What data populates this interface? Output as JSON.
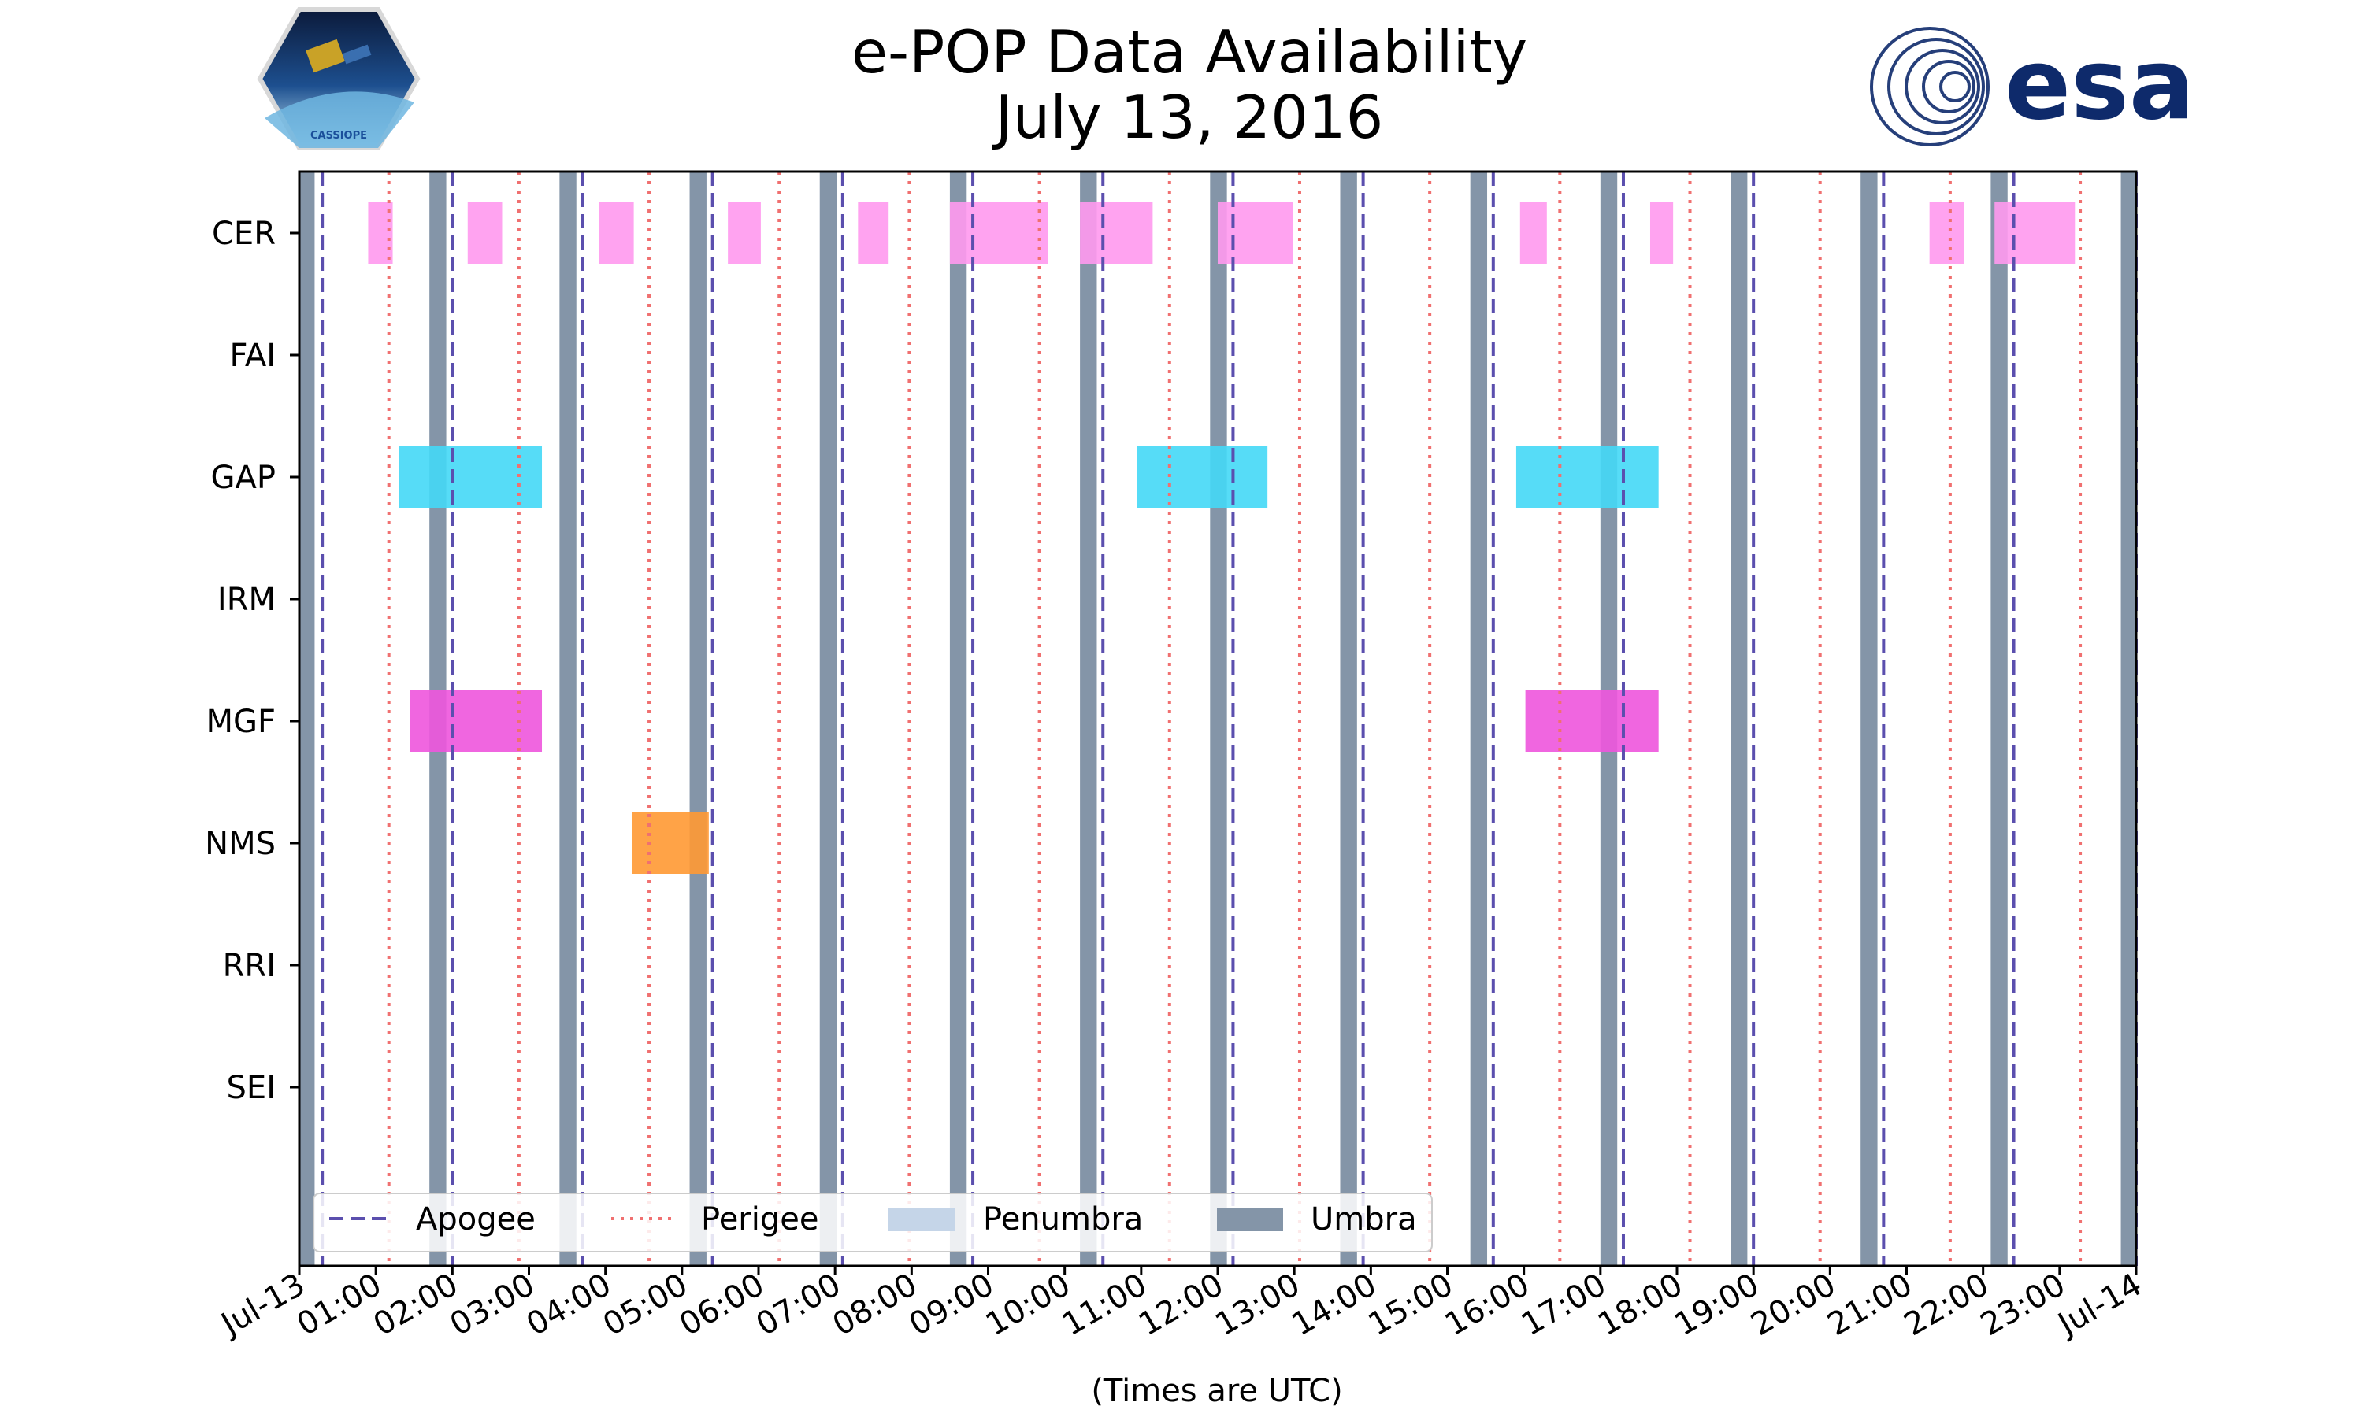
{
  "chart_data": {
    "type": "timeline",
    "title_line1": "e-POP Data Availability",
    "title_line2": "July 13, 2016",
    "xlabel": "(Times are UTC)",
    "xlim_hours": [
      0,
      24
    ],
    "x_ticks": [
      {
        "hour": 0,
        "label": "Jul-13"
      },
      {
        "hour": 1,
        "label": "01:00"
      },
      {
        "hour": 2,
        "label": "02:00"
      },
      {
        "hour": 3,
        "label": "03:00"
      },
      {
        "hour": 4,
        "label": "04:00"
      },
      {
        "hour": 5,
        "label": "05:00"
      },
      {
        "hour": 6,
        "label": "06:00"
      },
      {
        "hour": 7,
        "label": "07:00"
      },
      {
        "hour": 8,
        "label": "08:00"
      },
      {
        "hour": 9,
        "label": "09:00"
      },
      {
        "hour": 10,
        "label": "10:00"
      },
      {
        "hour": 11,
        "label": "11:00"
      },
      {
        "hour": 12,
        "label": "12:00"
      },
      {
        "hour": 13,
        "label": "13:00"
      },
      {
        "hour": 14,
        "label": "14:00"
      },
      {
        "hour": 15,
        "label": "15:00"
      },
      {
        "hour": 16,
        "label": "16:00"
      },
      {
        "hour": 17,
        "label": "17:00"
      },
      {
        "hour": 18,
        "label": "18:00"
      },
      {
        "hour": 19,
        "label": "19:00"
      },
      {
        "hour": 20,
        "label": "20:00"
      },
      {
        "hour": 21,
        "label": "21:00"
      },
      {
        "hour": 22,
        "label": "22:00"
      },
      {
        "hour": 23,
        "label": "23:00"
      },
      {
        "hour": 24,
        "label": "Jul-14"
      }
    ],
    "instruments": [
      "CER",
      "FAI",
      "GAP",
      "IRM",
      "MGF",
      "NMS",
      "RRI",
      "SEI"
    ],
    "series": [
      {
        "name": "CER",
        "color": "#ff99ee",
        "intervals": [
          [
            0.9,
            1.22
          ],
          [
            2.2,
            2.65
          ],
          [
            3.92,
            4.37
          ],
          [
            5.6,
            6.03
          ],
          [
            7.3,
            7.7
          ],
          [
            8.5,
            9.78
          ],
          [
            10.2,
            11.15
          ],
          [
            12.0,
            12.98
          ],
          [
            15.95,
            16.3
          ],
          [
            17.65,
            17.95
          ],
          [
            21.3,
            21.75
          ],
          [
            22.15,
            23.2
          ]
        ]
      },
      {
        "name": "FAI",
        "color": "#cccccc",
        "intervals": []
      },
      {
        "name": "GAP",
        "color": "#44d8f6",
        "intervals": [
          [
            1.3,
            3.17
          ],
          [
            10.95,
            12.65
          ],
          [
            15.9,
            17.76
          ]
        ]
      },
      {
        "name": "IRM",
        "color": "#cccccc",
        "intervals": []
      },
      {
        "name": "MGF",
        "color": "#ee55dd",
        "intervals": [
          [
            1.45,
            3.17
          ],
          [
            16.02,
            17.76
          ]
        ]
      },
      {
        "name": "NMS",
        "color": "#ff9933",
        "intervals": [
          [
            4.35,
            5.35
          ]
        ]
      },
      {
        "name": "RRI",
        "color": "#cccccc",
        "intervals": []
      },
      {
        "name": "SEI",
        "color": "#cccccc",
        "intervals": []
      }
    ],
    "umbra": [
      [
        0,
        0.2
      ],
      [
        1.7,
        1.92
      ],
      [
        3.4,
        3.62
      ],
      [
        5.1,
        5.32
      ],
      [
        6.8,
        7.02
      ],
      [
        8.5,
        8.72
      ],
      [
        10.2,
        10.42
      ],
      [
        11.9,
        12.12
      ],
      [
        13.6,
        13.82
      ],
      [
        15.3,
        15.52
      ],
      [
        17.0,
        17.22
      ],
      [
        18.7,
        18.92
      ],
      [
        20.4,
        20.62
      ],
      [
        22.1,
        22.32
      ],
      [
        23.8,
        24.0
      ]
    ],
    "apogee": [
      0.3,
      2.0,
      3.7,
      5.4,
      7.1,
      8.8,
      10.5,
      12.2,
      13.9,
      15.6,
      17.3,
      19.0,
      20.7,
      22.4,
      24.0
    ],
    "perigee": [
      1.17,
      2.87,
      4.57,
      6.27,
      7.97,
      9.67,
      11.37,
      13.07,
      14.77,
      16.47,
      18.17,
      19.87,
      21.57,
      23.27
    ],
    "legend": {
      "position": "lower-center",
      "items": [
        {
          "label": "Apogee",
          "kind": "dashed",
          "color": "#5b4fae"
        },
        {
          "label": "Perigee",
          "kind": "dotted",
          "color": "#f07070"
        },
        {
          "label": "Penumbra",
          "kind": "box",
          "color": "#c5d5e8"
        },
        {
          "label": "Umbra",
          "kind": "box",
          "color": "#8495a8"
        }
      ]
    },
    "colors": {
      "umbra": "#8495a8",
      "penumbra": "#c5d5e8",
      "apogee": "#5b4fae",
      "perigee": "#f07070"
    }
  },
  "logos": {
    "left": "CASSIOPE",
    "right": "esa"
  }
}
